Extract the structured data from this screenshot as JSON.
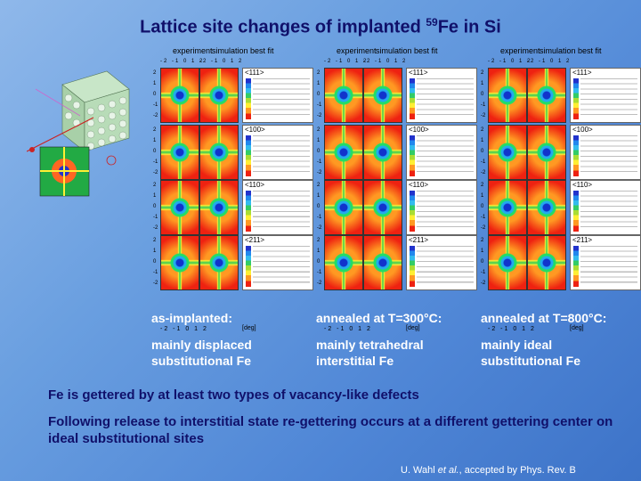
{
  "title": {
    "main": "Lattice site changes of implanted ",
    "mass": "59",
    "element": "Fe in Si"
  },
  "panel_headers": {
    "experiment": "experiment",
    "simulation": "simulation best fit"
  },
  "axis": {
    "top_ticks": "-2 -1 0 1 2",
    "y_ticks": [
      "2",
      "1",
      "0",
      "-1",
      "-2"
    ],
    "unit": "[deg]"
  },
  "directions": [
    "<111>",
    "<100>",
    "<110>",
    "<211>"
  ],
  "columns": [
    {
      "state": "as-implanted:",
      "description": "mainly displaced substitutional Fe"
    },
    {
      "state": "annealed at T=300°C:",
      "description": "mainly tetrahedral interstitial Fe"
    },
    {
      "state": "annealed at T=800°C:",
      "description": "mainly ideal substitutional Fe"
    }
  ],
  "findings": [
    "Fe is gettered by at least two types of vacancy-like defects",
    "Following release to interstitial state re-gettering occurs at a different gettering center on ideal substitutional sites"
  ],
  "citation": {
    "author": "U. Wahl ",
    "etal": "et al.",
    "journal": ", accepted by Phys. Rev. B"
  }
}
